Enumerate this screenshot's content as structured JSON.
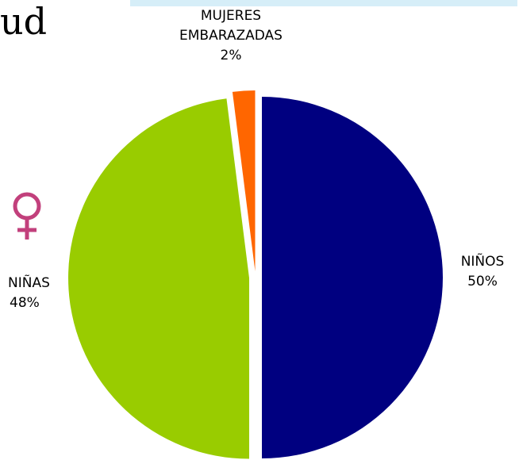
{
  "header": {
    "title_fragment": "ud"
  },
  "icons": {
    "female_symbol": "female-sign-icon"
  },
  "colors": {
    "female_icon": "#c2407c",
    "background_bar": "#d6eef8"
  },
  "chart_data": {
    "type": "pie",
    "start_angle_deg": 0,
    "direction": "clockwise",
    "exploded": true,
    "slices": [
      {
        "label": "NIÑOS",
        "value": 50,
        "value_label": "50%",
        "color": "#000080"
      },
      {
        "label": "NIÑAS",
        "value": 48,
        "value_label": "48%",
        "color": "#99cc00"
      },
      {
        "label": "MUJERES\nEMBARAZADAS",
        "label_lines": [
          "MUJERES",
          "EMBARAZADAS"
        ],
        "value": 2,
        "value_label": "2%",
        "color": "#ff6600"
      }
    ]
  }
}
